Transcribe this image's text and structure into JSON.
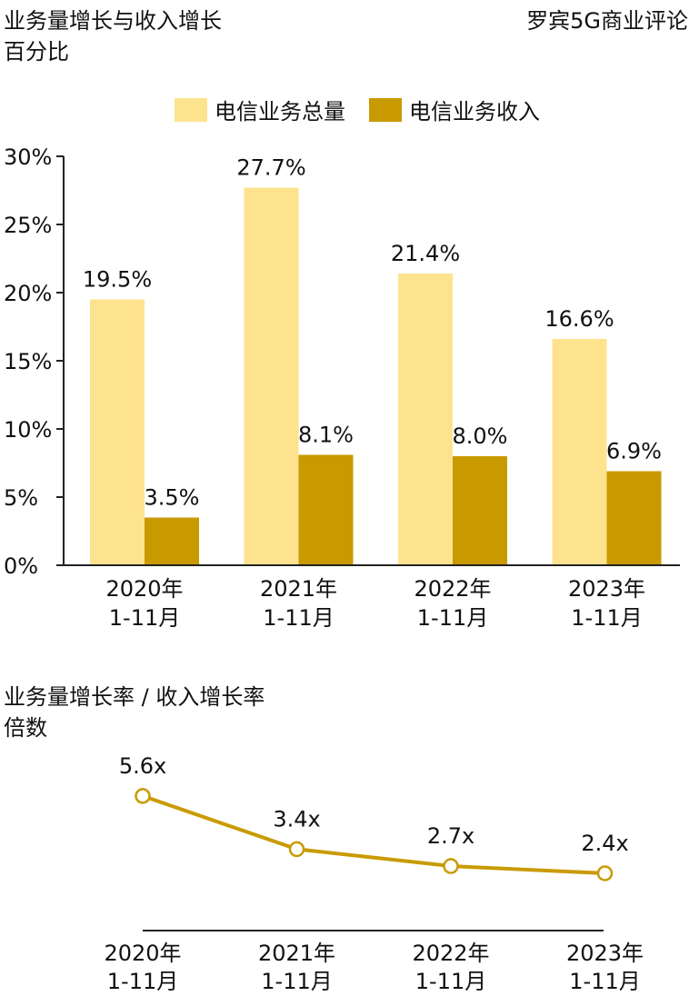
{
  "header": {
    "title": "业务量增长与收入增长",
    "subtitle": "百分比",
    "source": "罗宾5G商业评论"
  },
  "colors": {
    "total": "#fde38e",
    "revenue": "#c99a00",
    "axis": "#222222"
  },
  "chart_data": [
    {
      "type": "bar",
      "categories": [
        "2020年 1-11月",
        "2021年 1-11月",
        "2022年 1-11月",
        "2023年 1-11月"
      ],
      "category_lines": [
        [
          "2020年",
          "1-11月"
        ],
        [
          "2021年",
          "1-11月"
        ],
        [
          "2022年",
          "1-11月"
        ],
        [
          "2023年",
          "1-11月"
        ]
      ],
      "series": [
        {
          "name": "电信业务总量",
          "values": [
            19.5,
            27.7,
            21.4,
            16.6
          ],
          "labels": [
            "19.5%",
            "27.7%",
            "21.4%",
            "16.6%"
          ]
        },
        {
          "name": "电信业务收入",
          "values": [
            3.5,
            8.1,
            8.0,
            6.9
          ],
          "labels": [
            "3.5%",
            "8.1%",
            "8.0%",
            "6.9%"
          ]
        }
      ],
      "yticks": [
        "0%",
        "5%",
        "10%",
        "15%",
        "20%",
        "25%",
        "30%"
      ],
      "ylim": [
        0,
        30
      ],
      "legend": "top-center"
    },
    {
      "type": "line",
      "title": "业务量增长率 / 收入增长率",
      "subtitle": "倍数",
      "categories": [
        "2020年 1-11月",
        "2021年 1-11月",
        "2022年 1-11月",
        "2023年 1-11月"
      ],
      "category_lines": [
        [
          "2020年",
          "1-11月"
        ],
        [
          "2021年",
          "1-11月"
        ],
        [
          "2022年",
          "1-11月"
        ],
        [
          "2023年",
          "1-11月"
        ]
      ],
      "values": [
        5.6,
        3.4,
        2.7,
        2.4
      ],
      "labels": [
        "5.6x",
        "3.4x",
        "2.7x",
        "2.4x"
      ]
    }
  ]
}
